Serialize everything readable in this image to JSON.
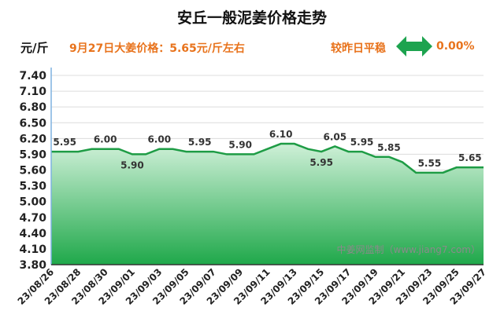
{
  "header": {
    "title": "安丘一般泥姜价格走势",
    "unit": "元/斤",
    "headline": "9月27日大姜价格：5.65元/斤左右",
    "compare_label": "较昨日平稳",
    "change": "0.00%",
    "trend_icon": "flat-double-arrow-icon"
  },
  "colors": {
    "accent_orange": "#E8731C",
    "flat_arrow_green": "#1DA34F",
    "area_top": "#CFF0D8",
    "area_bottom": "#1FA84A",
    "line": "#1E9C45",
    "axis_line": "#7FB2E0"
  },
  "watermark": "中姜网监制（www.jiang7.com）",
  "chart_data": {
    "type": "area",
    "title": "安丘一般泥姜价格走势",
    "xlabel": "",
    "ylabel": "元/斤",
    "ylim": [
      3.8,
      7.4
    ],
    "yticks": [
      "7.40",
      "7.10",
      "6.80",
      "6.50",
      "6.20",
      "5.90",
      "5.60",
      "5.30",
      "5.00",
      "4.70",
      "4.40",
      "4.10",
      "3.80"
    ],
    "x": [
      "23/08/26",
      "23/08/27",
      "23/08/28",
      "23/08/29",
      "23/08/30",
      "23/08/31",
      "23/09/01",
      "23/09/02",
      "23/09/03",
      "23/09/04",
      "23/09/05",
      "23/09/06",
      "23/09/07",
      "23/09/08",
      "23/09/09",
      "23/09/10",
      "23/09/11",
      "23/09/12",
      "23/09/13",
      "23/09/14",
      "23/09/15",
      "23/09/16",
      "23/09/17",
      "23/09/18",
      "23/09/19",
      "23/09/20",
      "23/09/21",
      "23/09/22",
      "23/09/23",
      "23/09/24",
      "23/09/25",
      "23/09/26",
      "23/09/27"
    ],
    "xtick_labels": [
      "23/08/26",
      "23/08/28",
      "23/08/30",
      "23/09/01",
      "23/09/03",
      "23/09/05",
      "23/09/07",
      "23/09/09",
      "23/09/11",
      "23/09/13",
      "23/09/15",
      "23/09/17",
      "23/09/19",
      "23/09/21",
      "23/09/23",
      "23/09/25",
      "23/09/27"
    ],
    "values": [
      5.95,
      5.95,
      5.95,
      6.0,
      6.0,
      6.0,
      5.9,
      5.9,
      6.0,
      6.0,
      5.95,
      5.95,
      5.95,
      5.9,
      5.9,
      5.9,
      6.0,
      6.1,
      6.1,
      6.0,
      5.95,
      6.05,
      5.95,
      5.95,
      5.85,
      5.85,
      5.75,
      5.55,
      5.55,
      5.55,
      5.65,
      5.65,
      5.65
    ],
    "data_labels": [
      {
        "date": "23/08/27",
        "value": "5.95",
        "position": "above"
      },
      {
        "date": "23/08/30",
        "value": "6.00",
        "position": "above"
      },
      {
        "date": "23/09/01",
        "value": "5.90",
        "position": "below"
      },
      {
        "date": "23/09/03",
        "value": "6.00",
        "position": "above"
      },
      {
        "date": "23/09/06",
        "value": "5.95",
        "position": "above"
      },
      {
        "date": "23/09/09",
        "value": "5.90",
        "position": "above"
      },
      {
        "date": "23/09/12",
        "value": "6.10",
        "position": "above"
      },
      {
        "date": "23/09/15",
        "value": "5.95",
        "position": "below"
      },
      {
        "date": "23/09/16",
        "value": "6.05",
        "position": "above"
      },
      {
        "date": "23/09/18",
        "value": "5.95",
        "position": "above"
      },
      {
        "date": "23/09/20",
        "value": "5.85",
        "position": "above"
      },
      {
        "date": "23/09/23",
        "value": "5.55",
        "position": "above"
      },
      {
        "date": "23/09/26",
        "value": "5.65",
        "position": "above"
      }
    ],
    "grid": "horizontal",
    "legend": "none"
  }
}
